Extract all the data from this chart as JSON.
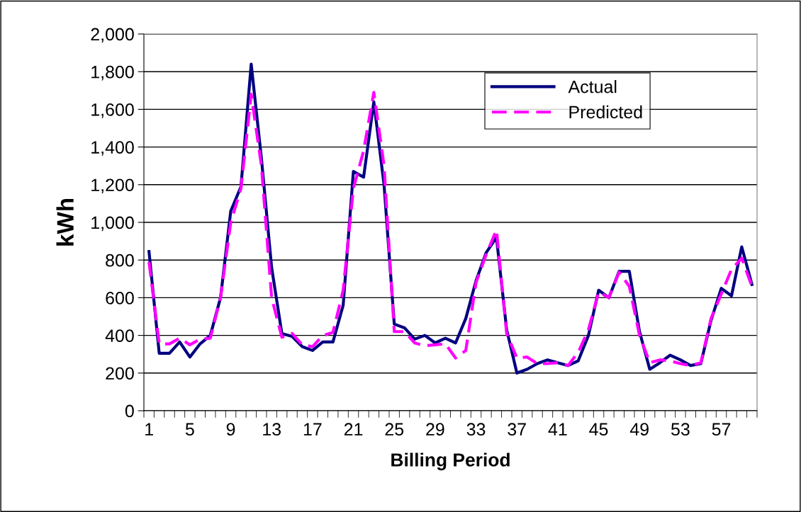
{
  "chart_data": {
    "type": "line",
    "xlabel": "Billing Period",
    "ylabel": "kWh",
    "categories": [
      "1",
      null,
      null,
      null,
      "5",
      null,
      null,
      null,
      "9",
      null,
      null,
      null,
      "13",
      null,
      null,
      null,
      "17",
      null,
      null,
      null,
      "21",
      null,
      null,
      null,
      "25",
      null,
      null,
      null,
      "29",
      null,
      null,
      null,
      "33",
      null,
      null,
      null,
      "37",
      null,
      null,
      null,
      "41",
      null,
      null,
      null,
      "45",
      null,
      null,
      null,
      "49",
      null,
      null,
      null,
      "53",
      null,
      null,
      null,
      "57",
      null,
      null,
      null
    ],
    "series": [
      {
        "name": "Actual",
        "color": "#000080",
        "line_style": "solid",
        "values": [
          845,
          305,
          305,
          365,
          285,
          355,
          400,
          600,
          1060,
          1190,
          1840,
          1340,
          760,
          410,
          395,
          340,
          320,
          365,
          365,
          560,
          1270,
          1240,
          1640,
          1200,
          460,
          440,
          380,
          400,
          360,
          385,
          360,
          490,
          690,
          840,
          920,
          430,
          200,
          220,
          250,
          270,
          255,
          240,
          265,
          400,
          640,
          600,
          740,
          740,
          420,
          220,
          255,
          295,
          270,
          240,
          250,
          480,
          650,
          610,
          870,
          670
        ]
      },
      {
        "name": "Predicted",
        "color": "#ff00ff",
        "line_style": "dashed",
        "values": [
          790,
          355,
          355,
          385,
          350,
          380,
          385,
          600,
          1000,
          1180,
          1680,
          1300,
          600,
          390,
          410,
          350,
          340,
          400,
          415,
          640,
          1180,
          1380,
          1690,
          1300,
          420,
          420,
          360,
          345,
          350,
          355,
          280,
          320,
          680,
          830,
          960,
          410,
          280,
          285,
          250,
          250,
          255,
          240,
          310,
          430,
          630,
          600,
          735,
          660,
          400,
          255,
          270,
          265,
          250,
          240,
          255,
          490,
          620,
          750,
          810,
          660
        ]
      }
    ],
    "ylim": [
      0,
      2000
    ],
    "yticks": [
      0,
      200,
      400,
      600,
      800,
      {
        "value": 1000,
        "label": "1,000"
      },
      {
        "value": 1200,
        "label": "1,200"
      },
      {
        "value": 1400,
        "label": "1,400"
      },
      {
        "value": 1600,
        "label": "1,600"
      },
      {
        "value": 1800,
        "label": "1,800"
      },
      {
        "value": 2000,
        "label": "2,000"
      }
    ],
    "grid": "y",
    "legend": "top right",
    "marker": "none"
  }
}
